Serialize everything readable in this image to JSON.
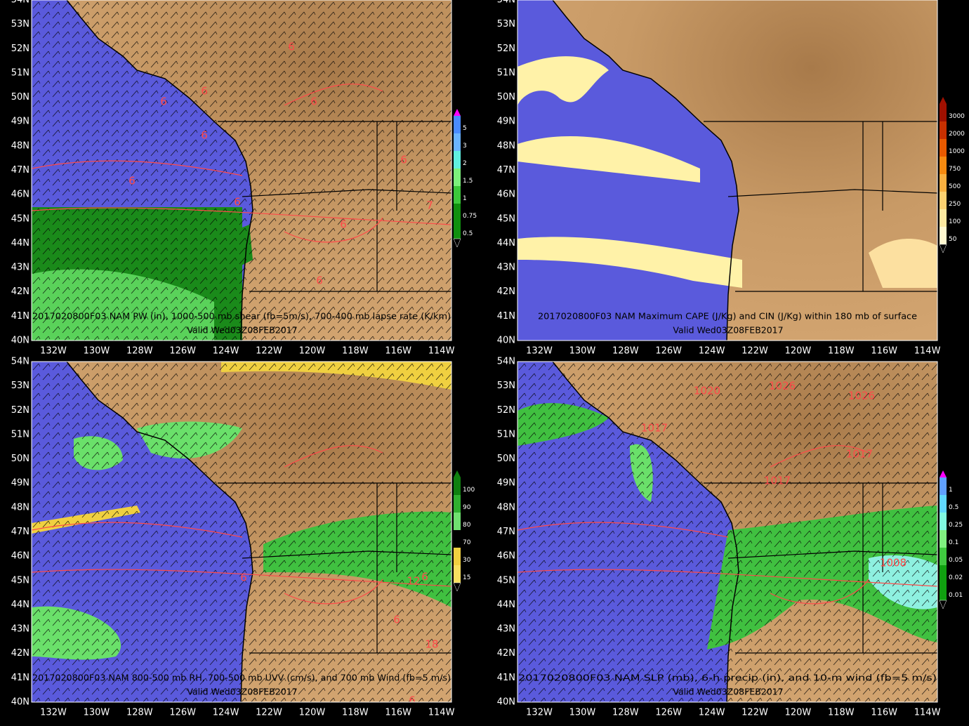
{
  "lat_labels": [
    "40N",
    "41N",
    "42N",
    "43N",
    "44N",
    "45N",
    "46N",
    "47N",
    "48N",
    "49N",
    "50N",
    "51N",
    "52N",
    "53N",
    "54N"
  ],
  "lon_labels": [
    "132W",
    "130W",
    "128W",
    "126W",
    "124W",
    "122W",
    "120W",
    "118W",
    "116W",
    "114W"
  ],
  "panels": [
    {
      "caption": "2017020800F03 NAM PW (in), 1000-500 mb shear (fb=5m/s), 700-400 mb lapse rate (K/km)",
      "valid": "Valid Wed03Z08FEB2017",
      "colorbar": [
        5,
        3,
        2,
        1.5,
        1,
        0.75,
        0.5
      ],
      "contour_labels": [
        "6",
        "6",
        "6",
        "6",
        "6",
        "6",
        "6",
        "6",
        "7",
        "6",
        "6"
      ]
    },
    {
      "caption": "2017020800F03 NAM Maximum CAPE (J/Kg) and CIN (J/Kg) within 180 mb of surface",
      "valid": "Valid Wed03Z08FEB2017",
      "colorbar": [
        3000,
        2000,
        1000,
        750,
        500,
        250,
        100,
        50
      ],
      "contour_labels": []
    },
    {
      "caption": "2017020800F03 NAM 800-500 mb RH, 700-500 mb UVV (cm/s), and 700 mb Wind (fb=5 m/s)",
      "valid": "Valid Wed03Z08FEB2017",
      "colorbar": [
        100,
        90,
        80,
        70,
        30,
        15
      ],
      "contour_labels": [
        "6",
        "12",
        "6",
        "6",
        "18",
        "6"
      ]
    },
    {
      "caption": "2017020800F03 NAM SLP (mb), 6-h precip (in), and 10-m wind (fb=5 m/s)",
      "valid": "Valid Wed03Z08FEB2017",
      "colorbar": [
        1,
        0.5,
        0.25,
        0.1,
        0.05,
        0.02,
        0.01
      ],
      "contour_labels": [
        "1020",
        "1026",
        "1026",
        "1017",
        "1017",
        "1017",
        "1008"
      ]
    }
  ]
}
